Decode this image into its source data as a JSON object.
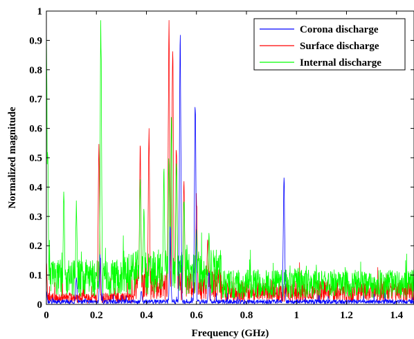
{
  "chart_data": {
    "type": "line",
    "xlabel": "Frequency (GHz)",
    "ylabel": "Normalized magnitude",
    "xlim": [
      0,
      1.47
    ],
    "ylim": [
      0,
      1
    ],
    "x_ticks": [
      "0",
      "0.2",
      "0.4",
      "0.6",
      "0.8",
      "1",
      "1.2",
      "1.4"
    ],
    "x_tick_values": [
      0,
      0.2,
      0.4,
      0.6,
      0.8,
      1,
      1.2,
      1.4
    ],
    "y_ticks": [
      "0",
      "0.1",
      "0.2",
      "0.3",
      "0.4",
      "0.5",
      "0.6",
      "0.7",
      "0.8",
      "0.9",
      "1"
    ],
    "y_tick_values": [
      0,
      0.1,
      0.2,
      0.3,
      0.4,
      0.5,
      0.6,
      0.7,
      0.8,
      0.9,
      1
    ],
    "grid": false,
    "legend_position": "top-right",
    "series": [
      {
        "name": "Corona discharge",
        "color": "#0000ff",
        "peaks": [
          [
            0.0,
            0.05
          ],
          [
            0.12,
            0.1
          ],
          [
            0.215,
            0.18
          ],
          [
            0.38,
            0.05
          ],
          [
            0.495,
            0.28
          ],
          [
            0.535,
            1.0
          ],
          [
            0.595,
            0.75
          ],
          [
            0.65,
            0.12
          ],
          [
            0.95,
            0.46
          ]
        ]
      },
      {
        "name": "Surface discharge",
        "color": "#ff0000",
        "peaks": [
          [
            0.0,
            0.15
          ],
          [
            0.21,
            0.6
          ],
          [
            0.375,
            0.56
          ],
          [
            0.41,
            0.62
          ],
          [
            0.49,
            1.0
          ],
          [
            0.505,
            0.94
          ],
          [
            0.52,
            0.6
          ],
          [
            0.55,
            0.45
          ],
          [
            0.6,
            0.4
          ],
          [
            0.645,
            0.25
          ]
        ]
      },
      {
        "name": "Internal discharge",
        "color": "#00ff00",
        "peaks": [
          [
            0.0,
            1.0
          ],
          [
            0.005,
            0.55
          ],
          [
            0.07,
            0.41
          ],
          [
            0.12,
            0.36
          ],
          [
            0.218,
            1.0
          ],
          [
            0.375,
            0.46
          ],
          [
            0.39,
            0.35
          ],
          [
            0.47,
            0.48
          ],
          [
            0.49,
            0.52
          ],
          [
            0.5,
            0.65
          ],
          [
            0.52,
            0.55
          ],
          [
            0.55,
            0.4
          ],
          [
            0.6,
            0.3
          ],
          [
            0.65,
            0.25
          ]
        ]
      }
    ]
  }
}
